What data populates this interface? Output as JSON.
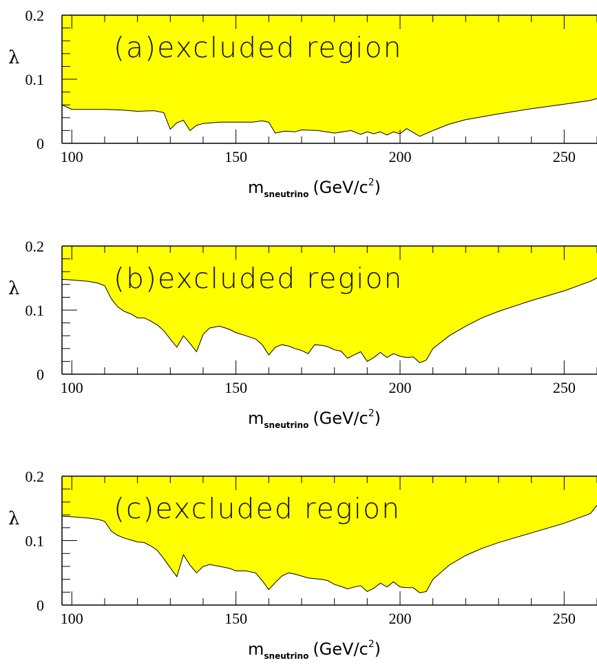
{
  "chart_data": [
    {
      "type": "area",
      "annotation": "(a)excluded region",
      "ylabel": "λ",
      "xlabel_main": "m",
      "xlabel_sub": "sneutrino",
      "xlabel_unit": "(GeV/c",
      "xlabel_sup": "2",
      "xlabel_close": ")",
      "xlim": [
        97,
        260
      ],
      "ylim": [
        0,
        0.2
      ],
      "x_ticks": [
        100,
        150,
        200,
        250
      ],
      "x_tick_labels": [
        "100",
        "150",
        "200",
        "250"
      ],
      "y_ticks": [
        0,
        0.1,
        0.2
      ],
      "y_tick_labels": [
        "0",
        "0.1",
        "0.2"
      ],
      "fill_color": "#ffff00",
      "boundary": {
        "x": [
          97,
          100,
          110,
          115,
          120,
          125,
          128,
          130,
          132,
          134,
          136,
          138,
          140,
          145,
          150,
          155,
          158,
          160,
          162,
          165,
          168,
          170,
          175,
          180,
          185,
          188,
          190,
          192,
          194,
          196,
          198,
          200,
          202,
          204,
          206,
          210,
          215,
          220,
          230,
          240,
          250,
          258,
          260
        ],
        "y": [
          0.06,
          0.053,
          0.053,
          0.052,
          0.05,
          0.051,
          0.048,
          0.022,
          0.032,
          0.036,
          0.02,
          0.028,
          0.031,
          0.033,
          0.033,
          0.033,
          0.035,
          0.033,
          0.016,
          0.019,
          0.018,
          0.021,
          0.02,
          0.016,
          0.02,
          0.014,
          0.018,
          0.015,
          0.018,
          0.013,
          0.018,
          0.015,
          0.023,
          0.017,
          0.011,
          0.02,
          0.03,
          0.037,
          0.046,
          0.054,
          0.061,
          0.067,
          0.07
        ]
      }
    },
    {
      "type": "area",
      "annotation": "(b)excluded region",
      "ylabel": "λ",
      "xlabel_main": "m",
      "xlabel_sub": "sneutrino",
      "xlabel_unit": "(GeV/c",
      "xlabel_sup": "2",
      "xlabel_close": ")",
      "xlim": [
        97,
        260
      ],
      "ylim": [
        0,
        0.2
      ],
      "x_ticks": [
        100,
        150,
        200,
        250
      ],
      "x_tick_labels": [
        "100",
        "150",
        "200",
        "250"
      ],
      "y_ticks": [
        0,
        0.1,
        0.2
      ],
      "y_tick_labels": [
        "0",
        "0.1",
        "0.2"
      ],
      "fill_color": "#ffff00",
      "boundary": {
        "x": [
          97,
          100,
          105,
          108,
          110,
          112,
          114,
          116,
          118,
          120,
          122,
          124,
          126,
          128,
          130,
          132,
          134,
          136,
          138,
          140,
          142,
          145,
          148,
          150,
          153,
          156,
          158,
          160,
          162,
          164,
          166,
          168,
          170,
          172,
          174,
          176,
          178,
          180,
          182,
          184,
          186,
          188,
          190,
          192,
          194,
          196,
          198,
          200,
          202,
          204,
          206,
          208,
          210,
          215,
          220,
          225,
          230,
          240,
          250,
          258,
          260
        ],
        "y": [
          0.148,
          0.147,
          0.145,
          0.142,
          0.138,
          0.118,
          0.105,
          0.098,
          0.094,
          0.088,
          0.088,
          0.083,
          0.077,
          0.068,
          0.055,
          0.042,
          0.06,
          0.048,
          0.035,
          0.062,
          0.072,
          0.075,
          0.07,
          0.065,
          0.06,
          0.055,
          0.046,
          0.03,
          0.042,
          0.046,
          0.044,
          0.04,
          0.037,
          0.032,
          0.046,
          0.045,
          0.043,
          0.038,
          0.036,
          0.025,
          0.03,
          0.035,
          0.02,
          0.026,
          0.034,
          0.026,
          0.032,
          0.028,
          0.026,
          0.027,
          0.018,
          0.022,
          0.04,
          0.06,
          0.075,
          0.088,
          0.098,
          0.115,
          0.13,
          0.145,
          0.15
        ]
      }
    },
    {
      "type": "area",
      "annotation": "(c)excluded region",
      "ylabel": "λ",
      "xlabel_main": "m",
      "xlabel_sub": "sneutrino",
      "xlabel_unit": "(GeV/c",
      "xlabel_sup": "2",
      "xlabel_close": ")",
      "xlim": [
        97,
        260
      ],
      "ylim": [
        0,
        0.2
      ],
      "x_ticks": [
        100,
        150,
        200,
        250
      ],
      "x_tick_labels": [
        "100",
        "150",
        "200",
        "250"
      ],
      "y_ticks": [
        0,
        0.1,
        0.2
      ],
      "y_tick_labels": [
        "0",
        "0.1",
        "0.2"
      ],
      "fill_color": "#ffff00",
      "boundary": {
        "x": [
          97,
          100,
          105,
          108,
          110,
          112,
          114,
          116,
          118,
          120,
          122,
          124,
          126,
          128,
          130,
          132,
          134,
          136,
          138,
          140,
          142,
          145,
          148,
          150,
          153,
          156,
          158,
          160,
          162,
          164,
          166,
          168,
          170,
          172,
          174,
          176,
          178,
          180,
          182,
          184,
          186,
          188,
          190,
          192,
          194,
          196,
          198,
          200,
          202,
          204,
          206,
          208,
          210,
          215,
          220,
          225,
          230,
          240,
          250,
          258,
          260
        ],
        "y": [
          0.138,
          0.137,
          0.135,
          0.133,
          0.13,
          0.115,
          0.108,
          0.104,
          0.101,
          0.098,
          0.097,
          0.092,
          0.085,
          0.072,
          0.058,
          0.044,
          0.078,
          0.062,
          0.05,
          0.06,
          0.063,
          0.06,
          0.057,
          0.053,
          0.053,
          0.05,
          0.038,
          0.024,
          0.035,
          0.045,
          0.05,
          0.048,
          0.045,
          0.042,
          0.041,
          0.04,
          0.038,
          0.032,
          0.029,
          0.025,
          0.028,
          0.03,
          0.021,
          0.026,
          0.034,
          0.028,
          0.036,
          0.028,
          0.027,
          0.027,
          0.019,
          0.021,
          0.04,
          0.062,
          0.077,
          0.088,
          0.097,
          0.112,
          0.127,
          0.142,
          0.155
        ]
      }
    }
  ]
}
